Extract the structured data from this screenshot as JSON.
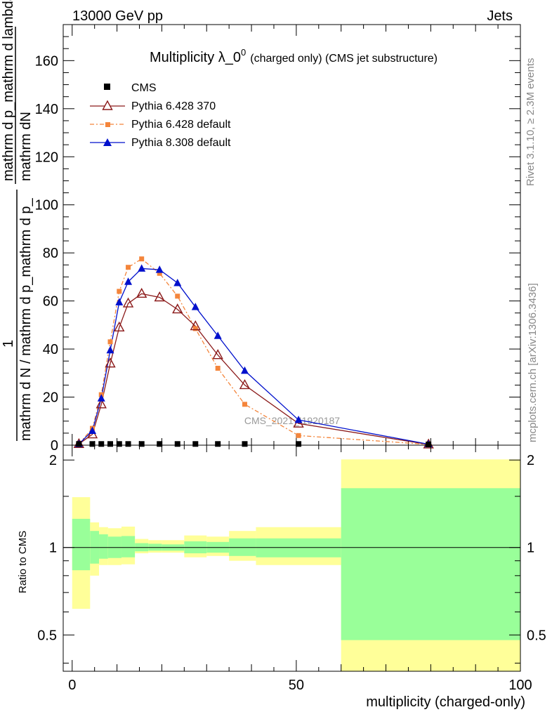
{
  "header": {
    "left": "13000 GeV pp",
    "right": "Jets"
  },
  "side_labels": {
    "rivet": "Rivet 3.1.10, ≥ 2.3M events",
    "mcplots": "mcplots.cern.ch [arXiv:1306.3436]"
  },
  "watermark": "CMS_2021_I1920187",
  "ylabel_main": {
    "numerator": "mathrm dN",
    "denominator": "mathrm d p_mathrm d lambda",
    "pre": "1",
    "pre_denominator": "mathrm d N / mathrm d p_mathrm d p_"
  },
  "colors": {
    "cms": "#000000",
    "p6_370": "#8b1a1a",
    "p6_def": "#f4853b",
    "p8_def": "#0010cc",
    "band_outer": "#ffff99",
    "band_inner": "#99ff99"
  },
  "chart_data": [
    {
      "type": "line",
      "title": "Multiplicity λ_0^0 (charged only) (CMS jet substructure)",
      "title_main": "Multiplicity λ_0",
      "title_sup": "0",
      "title_rest": "(charged only) (CMS jet substructure)",
      "xlabel": "multiplicity (charged-only)",
      "ylabel": "1/mathrm dN/mathrm d p_mathrm d lambda",
      "xlim": [
        -2,
        100
      ],
      "ylim": [
        0,
        175
      ],
      "yticks": [
        0,
        20,
        40,
        60,
        80,
        100,
        120,
        140,
        160
      ],
      "legend_position": "top-left",
      "series": [
        {
          "name": "CMS",
          "marker": "square",
          "x": [
            1.5,
            4.5,
            6.5,
            8.5,
            10.5,
            12.5,
            15.5,
            19.5,
            23.5,
            27.5,
            32.5,
            38.5,
            50.5,
            79.5
          ],
          "values": [
            0.5,
            0.5,
            0.5,
            0.5,
            0.5,
            0.5,
            0.5,
            0.5,
            0.5,
            0.5,
            0.5,
            0.5,
            0.5,
            0.3
          ]
        },
        {
          "name": "Pythia 6.428 370",
          "marker": "open-triangle",
          "x": [
            1.5,
            4.5,
            6.5,
            8.5,
            10.5,
            12.5,
            15.5,
            19.5,
            23.5,
            27.5,
            32.5,
            38.5,
            50.5,
            79.5
          ],
          "values": [
            0.5,
            4.5,
            17,
            34,
            49,
            59,
            63,
            61.5,
            56.5,
            49.5,
            37.5,
            25,
            9,
            0.3
          ]
        },
        {
          "name": "Pythia 6.428 default",
          "marker": "square",
          "x": [
            1.5,
            4.5,
            6.5,
            8.5,
            10.5,
            12.5,
            15.5,
            19.5,
            23.5,
            27.5,
            32.5,
            38.5,
            50.5,
            79.5
          ],
          "values": [
            0.5,
            7,
            21,
            43,
            64,
            74,
            77.5,
            71.5,
            62,
            48.5,
            32,
            17,
            4,
            0.3
          ]
        },
        {
          "name": "Pythia 8.308 default",
          "marker": "triangle",
          "x": [
            1.5,
            4.5,
            6.5,
            8.5,
            10.5,
            12.5,
            15.5,
            19.5,
            23.5,
            27.5,
            32.5,
            38.5,
            50.5,
            79.5
          ],
          "values": [
            0.5,
            6,
            19.5,
            39.5,
            59.5,
            68,
            73.5,
            73,
            67.5,
            57.5,
            45.5,
            31,
            10.5,
            0.4
          ]
        }
      ]
    },
    {
      "type": "area",
      "ylabel": "Ratio to CMS",
      "xlim": [
        -2,
        100
      ],
      "ylim": [
        0.375,
        2.25
      ],
      "scale": "log",
      "xticks": [
        0,
        50,
        100
      ],
      "yticks": [
        0.5,
        1,
        2
      ],
      "reference_line": 1,
      "bins": [
        {
          "x0": 0,
          "x1": 4,
          "inner": [
            0.835,
            1.255
          ],
          "outer": [
            0.615,
            1.49
          ]
        },
        {
          "x0": 4,
          "x1": 6,
          "inner": [
            0.88,
            1.14
          ],
          "outer": [
            0.8,
            1.22
          ]
        },
        {
          "x0": 6,
          "x1": 8,
          "inner": [
            0.915,
            1.11
          ],
          "outer": [
            0.87,
            1.175
          ]
        },
        {
          "x0": 8,
          "x1": 11,
          "inner": [
            0.92,
            1.09
          ],
          "outer": [
            0.87,
            1.165
          ]
        },
        {
          "x0": 11,
          "x1": 14,
          "inner": [
            0.925,
            1.095
          ],
          "outer": [
            0.875,
            1.18
          ]
        },
        {
          "x0": 14,
          "x1": 17,
          "inner": [
            0.97,
            1.035
          ],
          "outer": [
            0.955,
            1.07
          ]
        },
        {
          "x0": 17,
          "x1": 20,
          "inner": [
            0.975,
            1.03
          ],
          "outer": [
            0.96,
            1.06
          ]
        },
        {
          "x0": 20,
          "x1": 25,
          "inner": [
            0.975,
            1.025
          ],
          "outer": [
            0.96,
            1.06
          ]
        },
        {
          "x0": 25,
          "x1": 30,
          "inner": [
            0.955,
            1.05
          ],
          "outer": [
            0.925,
            1.1
          ]
        },
        {
          "x0": 30,
          "x1": 35,
          "inner": [
            0.96,
            1.045
          ],
          "outer": [
            0.935,
            1.09
          ]
        },
        {
          "x0": 35,
          "x1": 41,
          "inner": [
            0.935,
            1.075
          ],
          "outer": [
            0.9,
            1.14
          ]
        },
        {
          "x0": 41,
          "x1": 60,
          "inner": [
            0.925,
            1.075
          ],
          "outer": [
            0.87,
            1.175
          ]
        },
        {
          "x0": 60,
          "x1": 100,
          "inner": [
            0.48,
            1.6
          ],
          "outer": [
            0.375,
            2.01
          ]
        }
      ]
    }
  ]
}
